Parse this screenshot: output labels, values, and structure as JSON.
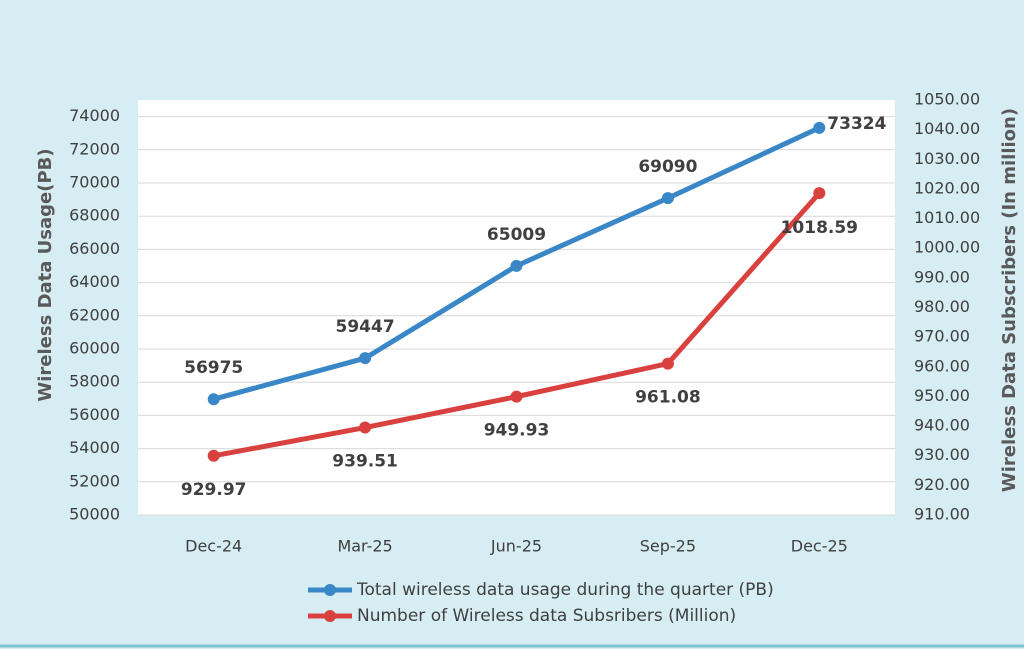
{
  "chart_data": {
    "type": "line",
    "categories": [
      "Dec-24",
      "Mar-25",
      "Jun-25",
      "Sep-25",
      "Dec-25"
    ],
    "y_label": "Wireless Data Usage(PB)",
    "y2_label": "Wireless Data Subscribers (In million)",
    "ylim": [
      50000,
      75000
    ],
    "yticks": [
      50000,
      52000,
      54000,
      56000,
      58000,
      60000,
      62000,
      64000,
      66000,
      68000,
      70000,
      72000,
      74000
    ],
    "y2lim": [
      910,
      1050
    ],
    "y2ticks": [
      {
        "value": 910,
        "label": "910.00"
      },
      {
        "value": 920,
        "label": "920.00"
      },
      {
        "value": 930,
        "label": "930.00"
      },
      {
        "value": 940,
        "label": "940.00"
      },
      {
        "value": 950,
        "label": "950.00"
      },
      {
        "value": 960,
        "label": "960.00"
      },
      {
        "value": 970,
        "label": "970.00"
      },
      {
        "value": 980,
        "label": "980.00"
      },
      {
        "value": 990,
        "label": "990.00"
      },
      {
        "value": 1000,
        "label": "1000.00"
      },
      {
        "value": 1010,
        "label": "1010.00"
      },
      {
        "value": 1020,
        "label": "1020.00"
      },
      {
        "value": 1030,
        "label": "1030.00"
      },
      {
        "value": 1040,
        "label": "1040.00"
      },
      {
        "value": 1050,
        "label": "1050.00"
      }
    ],
    "grid": true,
    "legend": "bottom",
    "series": [
      {
        "name": "Total wireless data usage during the quarter (PB)",
        "color": "#3a87c8",
        "values": [
          56975,
          59447,
          65009,
          69090,
          73324
        ]
      },
      {
        "name": "Number of Wireless data Subsribers (Million)",
        "color": "#d9413f",
        "axis": "y2",
        "values": [
          929.97,
          939.51,
          949.93,
          961.08,
          1018.59
        ]
      }
    ]
  }
}
